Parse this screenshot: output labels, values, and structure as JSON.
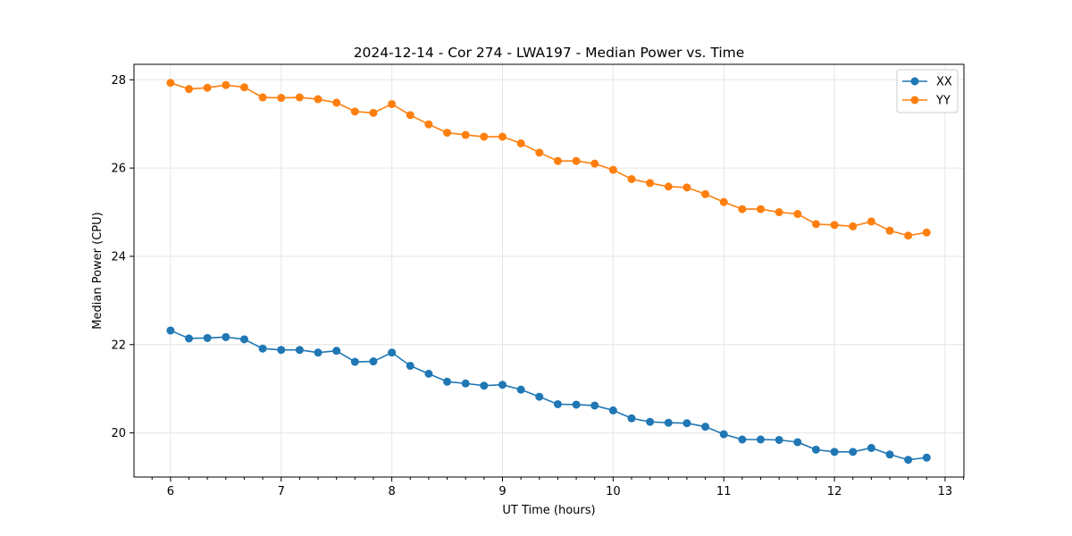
{
  "chart_data": {
    "type": "line",
    "title": "2024-12-14 - Cor 274 - LWA197 - Median Power vs. Time",
    "xlabel": "UT Time (hours)",
    "ylabel": "Median Power (CPU)",
    "xlim": [
      5.67,
      13.17
    ],
    "ylim": [
      19.0,
      28.35
    ],
    "xticks": [
      6,
      7,
      8,
      9,
      10,
      11,
      12,
      13
    ],
    "yticks": [
      20,
      22,
      24,
      26,
      28
    ],
    "grid": true,
    "legend_position": "top-right",
    "x": [
      6.0,
      6.1667,
      6.3333,
      6.5,
      6.6667,
      6.8333,
      7.0,
      7.1667,
      7.3333,
      7.5,
      7.6667,
      7.8333,
      8.0,
      8.1667,
      8.3333,
      8.5,
      8.6667,
      8.8333,
      9.0,
      9.1667,
      9.3333,
      9.5,
      9.6667,
      9.8333,
      10.0,
      10.1667,
      10.3333,
      10.5,
      10.6667,
      10.8333,
      11.0,
      11.1667,
      11.3333,
      11.5,
      11.6667,
      11.8333,
      12.0,
      12.1667,
      12.3333,
      12.5,
      12.6667,
      12.8333
    ],
    "series": [
      {
        "name": "XX",
        "color": "#1f77b4",
        "values": [
          22.32,
          22.14,
          22.15,
          22.17,
          22.12,
          21.91,
          21.88,
          21.88,
          21.82,
          21.86,
          21.61,
          21.62,
          21.82,
          21.52,
          21.34,
          21.16,
          21.12,
          21.07,
          21.09,
          20.98,
          20.82,
          20.65,
          20.64,
          20.62,
          20.51,
          20.33,
          20.25,
          20.23,
          20.22,
          20.14,
          19.97,
          19.85,
          19.85,
          19.84,
          19.79,
          19.62,
          19.57,
          19.57,
          19.66,
          19.51,
          19.39,
          19.44
        ]
      },
      {
        "name": "YY",
        "color": "#ff7f0e",
        "values": [
          27.93,
          27.79,
          27.82,
          27.88,
          27.83,
          27.6,
          27.59,
          27.6,
          27.56,
          27.48,
          27.28,
          27.25,
          27.45,
          27.2,
          26.99,
          26.8,
          26.75,
          26.71,
          26.71,
          26.56,
          26.35,
          26.16,
          26.16,
          26.1,
          25.96,
          25.75,
          25.66,
          25.58,
          25.56,
          25.41,
          25.23,
          25.07,
          25.07,
          25.0,
          24.96,
          24.73,
          24.71,
          24.68,
          24.79,
          24.58,
          24.47,
          24.54
        ]
      }
    ]
  }
}
